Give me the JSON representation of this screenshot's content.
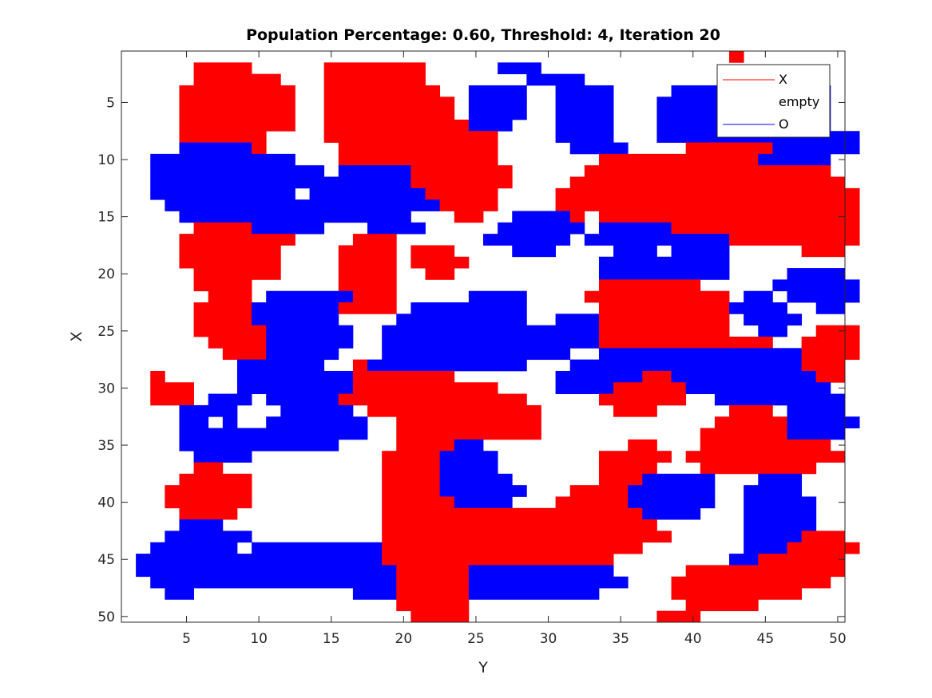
{
  "chart_data": {
    "type": "heatmap",
    "title": "Population Percentage: 0.60, Threshold: 4, Iteration 20",
    "xlabel": "Y",
    "ylabel": "X",
    "xlim": [
      0.5,
      50.5
    ],
    "ylim": [
      0.5,
      50.5
    ],
    "y_reversed": true,
    "xticks": [
      "5",
      "10",
      "15",
      "20",
      "25",
      "30",
      "35",
      "40",
      "45",
      "50"
    ],
    "yticks": [
      "5",
      "10",
      "15",
      "20",
      "25",
      "30",
      "35",
      "40",
      "45",
      "50"
    ],
    "colors": {
      "X": "#ff0000",
      "O": "#0000ff",
      "empty": "#ffffff",
      "axis": "#262626"
    },
    "legend": {
      "position": "top-right",
      "entries": [
        {
          "label": "X",
          "color": "#ff0000"
        },
        {
          "label": "empty",
          "color": "#ffffff"
        },
        {
          "label": "O",
          "color": "#0000ff"
        }
      ]
    },
    "grid_legend": {
      ".": "empty",
      "R": "X",
      "B": "O"
    },
    "grid": [
      "..........................................R.......",
      ".....RRRR.....RRRRRRR.....BBB....................",
      ".....RRRRRR...RRRRRRR.......BBBB..........RRRRRR...",
      "....RRRRRRRR..RRRRRRRR..BBBB..BBBB....BBBBBBBBBBB..",
      "....RRRRRRRR..RRRRRRRRR.BBBB..BBBB...BBBBBBBBBBBB..",
      "....RRRRRRRR..RRRRRRRRR.BBBB..BBBB...BBBBBBBBBBBB..",
      "....RRRRRRRR..RRRRRRRRRRBBB...BBBB...BBBBBBBBBBBB..",
      "....RRRRRR....RRRRRRRRRRRR....BBBB...BBBBBBBBBBBBBB",
      "....BBBBBR.....RRRRRRRRRRR.....BBBB....RRRRRRBBBBBB",
      "..BBBBBBBBBB...RRRRRRRRRRR.......RRRRRRRRRRRBBBBB..",
      "..BBBBBBBBBBBB.BBBBBRRRRRRR.....RRRRRRRRRRRRRRRRR..",
      "..BBBBBBBBBBBBBBBBBBRRRRRRR....RRRRRRRRRRRRRRRRRRR.",
      "..BBBBBBBBBB.BBBBBBBBRRRRR....RRRRRRRRRRRRRRRRRRRRR",
      "...BBBBBBBBBBBBBBBBBBBRRRR....RRRRRRRRRRRRRRRRRRRRR",
      "....BBBBBBBBBBBBBBBB...RR..BBBBR.RRRRRRRRRRRRRRRRRR",
      ".....RRRRBBBBB...BBBB.....BBBBBB.BBBBBRRRRRRRRRRRRR",
      "....RRRRRRRR....RRR......BBBBBB.BBBBBBBBBBRRRRRRRRR",
      "....RRRRRRR....RRRR.RRR....BBB....BBB.BBBB.....RRR.",
      "....RRRRRRR....RRRR.RRRR.........BBBBBBBBB.........",
      ".....RRRRRR....RRRR..RR..........BBBBBBBBB....BBBB.",
      ".....RRRR......RRRR..............RRRRRRR.....BBBBBB",
      "......RRR.BBBBBBRRR.....BBBB....RRRRRRRRRR.BB.BBBBB",
      ".....RRRRBBBBBBRRRR.BBBBBBBB.....RRRRRRRRRBBBB..BB.",
      ".....RRRRBBBBBB....BBBBBBBBB..BBBRRRRRRRRR.BBBB....",
      ".....RRRRRBBBBBB..BBBBBBBBBBBBBBBRRRRRRRRR..BB..RRR",
      "......RRRRBBBBBB..BBBBBBBBBBBBBBBRRRRRRRRRRRR..RRRR",
      ".......RRRBBBBB...BBBBBBBBBBBBB..BBBBBBBBBBBBBBRRRR",
      "........BBBBBB..RBBBBBBBBBBB...BBBBBBBBBBBBBBBBRRR.",
      "..R.....BBBBBBBBRRRRRRR.......BBBBBBRRBBBBBBBBBBRR.",
      "..RRR...BBBBBBBBRRRRRRRRRR....BBBBRRRRRBBBBBBBBBB..",
      "..RRR.BBB.BBBBBRRRRRRRRRRRRR.....RRRRRR..BBBBBBBBB.",
      "....BBBB...BBBBB.RRRRRRRRRRRR.....RRR.....RRR.BBBB.",
      "....BB.B..BBBBBBB..RRRRRRRRRR............RRRRRBBBBB",
      "....BBBBBBBBBBBBB..RRRRRRRRRR...........RRRRRRBBBB.",
      "....BBBBBBBBBBB....RRRRBB..........RR...RRRRRRRRR..",
      ".....BBBB.........RRRRBBBB.......RRRRR.RRRRRRRRRRR.",
      ".....RR...........RRRRBBBB.......RRRR...RRRRRRRR...",
      "....RRRRR.........RRRRBBBBB......RRRBBBBB...BBB....",
      "...RRRRRR.........RRRRBBBBBB...RRRRBBBBBB..BBBB....",
      "...RRRRRR.........RRRRRBBBB...RRRRRBBBBBB..BBBBB...",
      "....RRRR..........RRRRRRRRRRRRRRRRRRBBBB...BBBBB...",
      "....BBB...........RRRRRRRRRRRRRRRRRRR......BBBBB...",
      "...BBBBBB.........RRRRRRRRRRRRRRRRRRRR.....BBBBRRR.",
      "..BBBBBB.BBBBBBBBBRRRRRRRRRRRRRRRRRR.......BBBRRRRR",
      ".BBBBBBBBBBBBBBBBBRRRRRRRRRRRRRRRR........BBRRRRRR.",
      ".BBBBBBBBBBBBBBBBBBRRRRRBBBBBBBBBB.....RRRRRRRRRRR.",
      "..BBBBBBBBBBBBBBBBBRRRRRBBBBBBBBBBB...RRRRRRRRRRR..",
      "...BB...........BBBRRRRRBBBBBBBBB.....RRRRRRRRR....",
      "...................RRRRR...............RRRRR.......",
      "....................RRRR.............RRR..........."
    ]
  }
}
